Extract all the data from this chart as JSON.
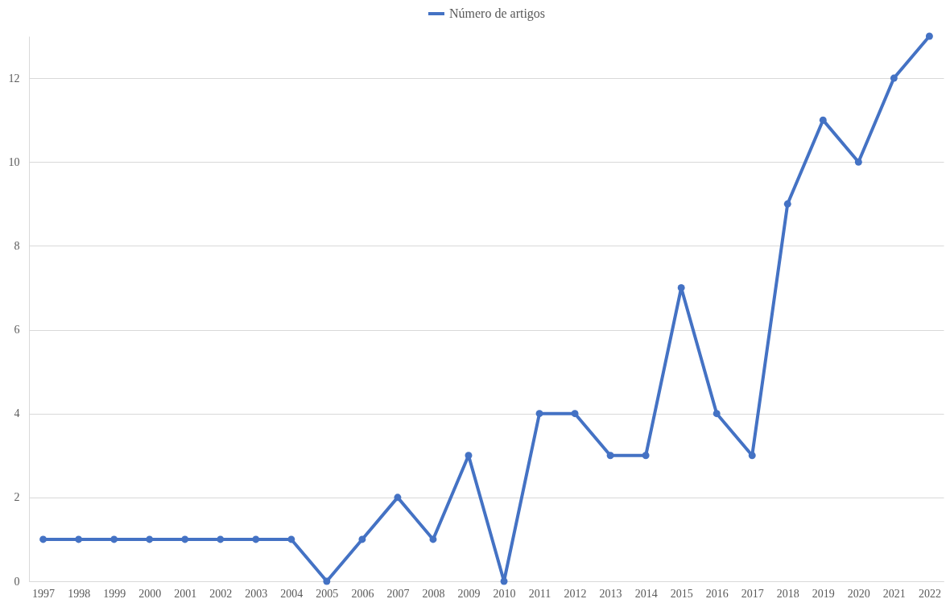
{
  "chart_data": {
    "type": "line",
    "categories": [
      "1997",
      "1998",
      "1999",
      "2000",
      "2001",
      "2002",
      "2003",
      "2004",
      "2005",
      "2006",
      "2007",
      "2008",
      "2009",
      "2010",
      "2011",
      "2012",
      "2013",
      "2014",
      "2015",
      "2016",
      "2017",
      "2018",
      "2019",
      "2020",
      "2021",
      "2022"
    ],
    "series": [
      {
        "name": "Número de artigos",
        "color": "#4472c4",
        "values": [
          1,
          1,
          1,
          1,
          1,
          1,
          1,
          1,
          0,
          1,
          2,
          1,
          3,
          0,
          4,
          4,
          3,
          3,
          7,
          4,
          3,
          9,
          11,
          10,
          12,
          13
        ]
      }
    ],
    "ylim": [
      0,
      13
    ],
    "yticks": [
      0,
      2,
      4,
      6,
      8,
      10,
      12
    ],
    "grid": "y",
    "legend": "top",
    "marker": "circle",
    "line_style": "solid"
  }
}
